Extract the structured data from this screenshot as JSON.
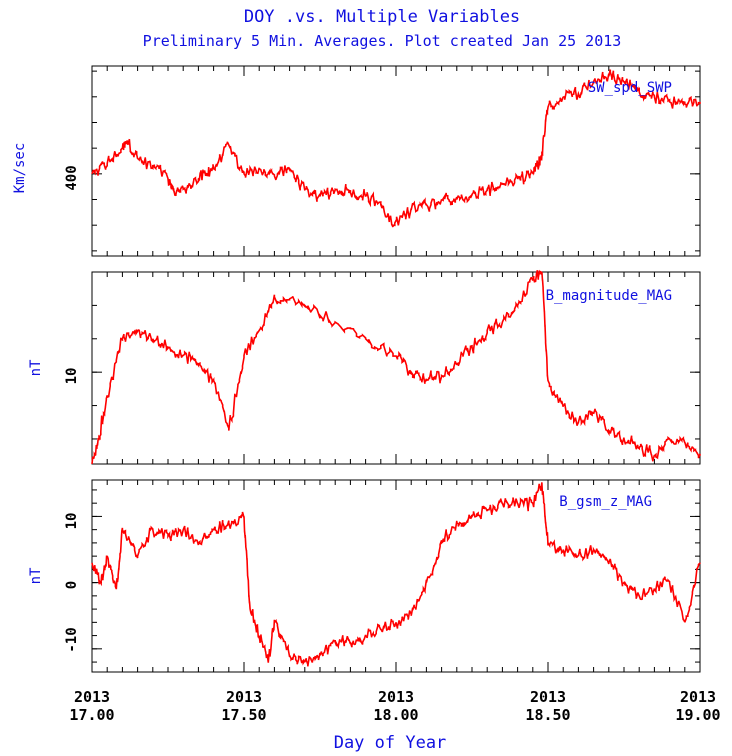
{
  "title": "DOY .vs. Multiple Variables",
  "subtitle": "Preliminary 5 Min. Averages. Plot created Jan 25 2013",
  "xlabel": "Day of Year",
  "colors": {
    "text": "#1010e0",
    "line": "#ff0000",
    "axis": "#000000"
  },
  "x_ticks": [
    {
      "year": "2013",
      "day": "17.00",
      "value": 17.0
    },
    {
      "year": "2013",
      "day": "17.50",
      "value": 17.5
    },
    {
      "year": "2013",
      "day": "18.00",
      "value": 18.0
    },
    {
      "year": "2013",
      "day": "18.50",
      "value": 18.5
    },
    {
      "year": "2013",
      "day": "19.00",
      "value": 19.0
    }
  ],
  "chart_data": [
    {
      "type": "line",
      "series": [
        {
          "name": "SW_spd_SWP"
        }
      ],
      "ylabel": "Km/sec",
      "ylim": [
        320,
        505
      ],
      "ytick_labels": [
        "400"
      ],
      "xlim": [
        17.0,
        19.0
      ],
      "x": [
        17.0,
        17.05,
        17.1,
        17.12,
        17.15,
        17.2,
        17.25,
        17.27,
        17.3,
        17.35,
        17.38,
        17.4,
        17.45,
        17.5,
        17.55,
        17.6,
        17.65,
        17.7,
        17.75,
        17.8,
        17.85,
        17.9,
        17.95,
        17.99,
        18.05,
        18.1,
        18.15,
        18.2,
        18.25,
        18.3,
        18.35,
        18.4,
        18.45,
        18.47,
        18.48,
        18.5,
        18.55,
        18.6,
        18.65,
        18.7,
        18.75,
        18.8,
        18.85,
        18.9,
        18.95,
        19.0
      ],
      "values": [
        400,
        410,
        425,
        430,
        415,
        408,
        395,
        383,
        385,
        395,
        400,
        405,
        428,
        400,
        405,
        398,
        405,
        385,
        378,
        385,
        382,
        378,
        370,
        350,
        365,
        370,
        375,
        375,
        380,
        385,
        390,
        395,
        402,
        410,
        420,
        465,
        475,
        478,
        490,
        495,
        490,
        480,
        475,
        470,
        468,
        470
      ]
    },
    {
      "type": "line",
      "series": [
        {
          "name": "B_magnitude_MAG"
        }
      ],
      "ylabel": "nT",
      "ylim": [
        4.5,
        16.0
      ],
      "ytick_labels": [
        "10"
      ],
      "xlim": [
        17.0,
        19.0
      ],
      "x": [
        17.0,
        17.02,
        17.05,
        17.1,
        17.15,
        17.2,
        17.25,
        17.3,
        17.35,
        17.4,
        17.45,
        17.5,
        17.55,
        17.6,
        17.7,
        17.8,
        17.9,
        18.0,
        18.05,
        18.1,
        18.15,
        18.2,
        18.25,
        18.3,
        18.35,
        18.4,
        18.45,
        18.48,
        18.5,
        18.55,
        18.6,
        18.65,
        18.7,
        18.75,
        18.8,
        18.85,
        18.9,
        18.95,
        19.0
      ],
      "values": [
        4.5,
        6.0,
        8.5,
        12.0,
        12.5,
        12.0,
        11.5,
        11.0,
        10.5,
        9.5,
        6.5,
        11.0,
        12.5,
        14.5,
        14.0,
        13.0,
        12.0,
        11.0,
        10.0,
        9.5,
        9.8,
        10.5,
        11.5,
        12.5,
        13.0,
        14.0,
        15.5,
        16.0,
        9.5,
        8.0,
        7.0,
        7.5,
        6.5,
        6.0,
        5.5,
        5.0,
        6.0,
        5.8,
        5.0
      ]
    },
    {
      "type": "line",
      "series": [
        {
          "name": "B_gsm_z_MAG"
        }
      ],
      "ylabel": "nT",
      "ylim": [
        -13.5,
        15.5
      ],
      "ytick_labels": [
        "10",
        "0",
        "-10"
      ],
      "xlim": [
        17.0,
        19.0
      ],
      "x": [
        17.0,
        17.03,
        17.05,
        17.08,
        17.1,
        17.15,
        17.2,
        17.25,
        17.3,
        17.35,
        17.4,
        17.45,
        17.5,
        17.52,
        17.55,
        17.58,
        17.6,
        17.65,
        17.7,
        17.75,
        17.8,
        17.85,
        17.9,
        17.95,
        18.0,
        18.05,
        18.1,
        18.15,
        18.2,
        18.25,
        18.3,
        18.35,
        18.4,
        18.45,
        18.48,
        18.5,
        18.55,
        18.6,
        18.65,
        18.7,
        18.75,
        18.8,
        18.85,
        18.9,
        18.95,
        19.0
      ],
      "values": [
        3,
        0,
        4,
        -1,
        8,
        4,
        8,
        7,
        8,
        6,
        8,
        9,
        10,
        -4,
        -8,
        -12,
        -6,
        -11,
        -12,
        -11,
        -9,
        -9,
        -8,
        -7,
        -6,
        -5,
        0,
        6,
        9,
        10,
        11,
        12,
        12,
        12,
        15,
        6,
        5,
        4,
        5,
        3,
        0,
        -2,
        -1,
        0,
        -6,
        3
      ]
    }
  ]
}
